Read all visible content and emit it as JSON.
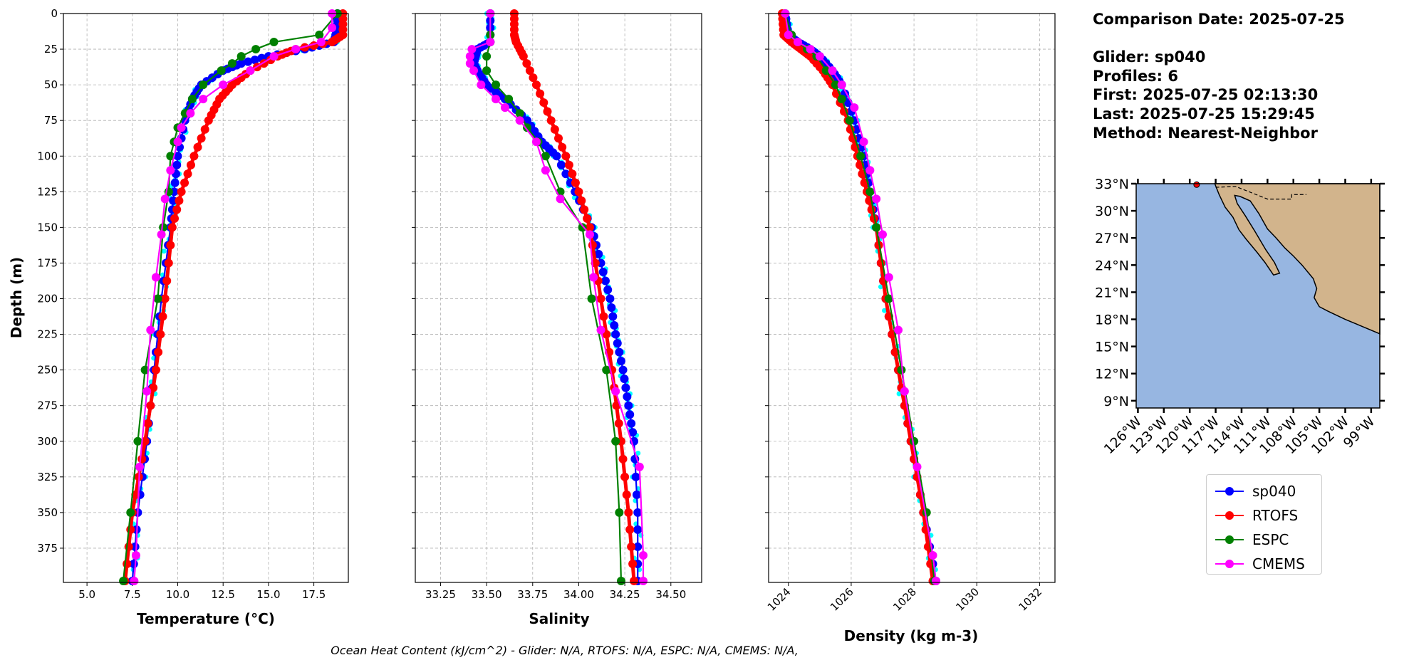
{
  "info": {
    "lines": [
      "Comparison Date: 2025-07-25",
      "",
      "Glider: sp040",
      "Profiles: 6",
      "First: 2025-07-25 02:13:30",
      "Last: 2025-07-25 15:29:45",
      "Method: Nearest-Neighbor"
    ]
  },
  "caption": "Ocean Heat Content (kJ/cm^2) - Glider: N/A,  RTOFS: N/A,  ESPC: N/A,  CMEMS: N/A,",
  "colors": {
    "sp040": "#0000ff",
    "RTOFS": "#ff0000",
    "ESPC": "#008000",
    "CMEMS": "#ff00ff",
    "profiles": "#00ffff",
    "water": "#97b6e1",
    "land": "#d2b48c"
  },
  "legend": [
    "sp040",
    "RTOFS",
    "ESPC",
    "CMEMS"
  ],
  "chart_data": [
    {
      "type": "line",
      "xlabel": "Temperature (°C)",
      "ylabel": "Depth (m)",
      "xlim": [
        3.7,
        19.4
      ],
      "ylim": [
        399,
        0
      ],
      "xticks": [
        "5.0",
        "7.5",
        "10.0",
        "12.5",
        "15.0",
        "17.5"
      ],
      "yticks": [
        "0",
        "25",
        "50",
        "75",
        "100",
        "125",
        "150",
        "175",
        "200",
        "225",
        "250",
        "275",
        "300",
        "325",
        "350",
        "375"
      ],
      "grid": true,
      "series": [
        {
          "name": "sp040",
          "depth": [
            0,
            10,
            20,
            25,
            30,
            35,
            40,
            50,
            60,
            75,
            100,
            125,
            150,
            200,
            250,
            300,
            350,
            398
          ],
          "values": [
            18.8,
            18.8,
            18.6,
            17,
            15,
            13.5,
            12.5,
            11.3,
            10.8,
            10.4,
            10.0,
            9.8,
            9.6,
            9.1,
            8.7,
            8.3,
            7.8,
            7.5
          ]
        },
        {
          "name": "RTOFS",
          "depth": [
            0,
            15,
            20,
            25,
            30,
            40,
            50,
            60,
            75,
            100,
            125,
            150,
            200,
            250,
            300,
            350,
            398
          ],
          "values": [
            19.1,
            19.1,
            18.5,
            16.5,
            15.5,
            14,
            13,
            12.3,
            11.7,
            10.9,
            10.2,
            9.7,
            9.3,
            8.8,
            8.2,
            7.5,
            7.1
          ]
        },
        {
          "name": "ESPC",
          "depth": [
            0,
            15,
            20,
            25,
            30,
            35,
            40,
            50,
            60,
            70,
            80,
            90,
            100,
            125,
            150,
            200,
            250,
            300,
            350,
            398
          ],
          "values": [
            18.8,
            17.8,
            15.3,
            14.3,
            13.5,
            13,
            12.4,
            11.4,
            10.8,
            10.4,
            10,
            9.8,
            9.6,
            9.5,
            9.2,
            8.9,
            8.2,
            7.8,
            7.4,
            7.0
          ]
        },
        {
          "name": "CMEMS",
          "depth": [
            0,
            10,
            20,
            25,
            30,
            40,
            50,
            60,
            70,
            80,
            90,
            110,
            130,
            155,
            185,
            222,
            265,
            318,
            380,
            398
          ],
          "values": [
            18.5,
            18.5,
            17.9,
            16.5,
            15.3,
            14,
            12.5,
            11.4,
            10.7,
            10.2,
            10,
            9.6,
            9.3,
            9.1,
            8.8,
            8.5,
            8.3,
            7.9,
            7.7,
            7.6
          ]
        }
      ]
    },
    {
      "type": "line",
      "xlabel": "Salinity",
      "xlim": [
        33.113,
        34.667
      ],
      "ylim": [
        399,
        0
      ],
      "xticks": [
        "33.25",
        "33.50",
        "33.75",
        "34.00",
        "34.25",
        "34.50"
      ],
      "grid": true,
      "series": [
        {
          "name": "sp040",
          "depth": [
            0,
            20,
            25,
            30,
            35,
            40,
            50,
            60,
            75,
            90,
            100,
            125,
            150,
            175,
            200,
            225,
            250,
            275,
            300,
            350,
            398
          ],
          "values": [
            33.52,
            33.52,
            33.45,
            33.44,
            33.43,
            33.45,
            33.5,
            33.6,
            33.72,
            33.8,
            33.88,
            33.98,
            34.07,
            34.12,
            34.17,
            34.2,
            34.24,
            34.27,
            34.3,
            34.32,
            34.32
          ]
        },
        {
          "name": "RTOFS",
          "depth": [
            0,
            15,
            20,
            30,
            50,
            75,
            100,
            125,
            150,
            200,
            250,
            300,
            350,
            398
          ],
          "values": [
            33.65,
            33.65,
            33.66,
            33.7,
            33.77,
            33.85,
            33.93,
            34.0,
            34.06,
            34.12,
            34.18,
            34.23,
            34.27,
            34.3
          ]
        },
        {
          "name": "ESPC",
          "depth": [
            0,
            15,
            20,
            30,
            40,
            50,
            60,
            70,
            80,
            90,
            100,
            125,
            150,
            200,
            250,
            300,
            350,
            398
          ],
          "values": [
            33.52,
            33.52,
            33.52,
            33.5,
            33.5,
            33.55,
            33.62,
            33.68,
            33.72,
            33.78,
            33.82,
            33.9,
            34.02,
            34.07,
            34.15,
            34.2,
            34.22,
            34.23
          ]
        },
        {
          "name": "CMEMS",
          "depth": [
            0,
            20,
            25,
            30,
            35,
            40,
            50,
            60,
            66,
            75,
            90,
            110,
            130,
            155,
            185,
            222,
            265,
            318,
            380,
            398
          ],
          "values": [
            33.52,
            33.52,
            33.42,
            33.41,
            33.41,
            33.43,
            33.47,
            33.55,
            33.6,
            33.68,
            33.77,
            33.82,
            33.9,
            34.06,
            34.08,
            34.12,
            34.2,
            34.33,
            34.35,
            34.35
          ]
        }
      ]
    },
    {
      "type": "line",
      "xlabel": "Density (kg m-3)",
      "xlim": [
        1023.37,
        1032.49
      ],
      "ylim": [
        399,
        0
      ],
      "xticks": [
        "1024",
        "1026",
        "1028",
        "1030",
        "1032"
      ],
      "grid": true,
      "series": [
        {
          "name": "sp040",
          "depth": [
            0,
            15,
            20,
            25,
            30,
            40,
            50,
            75,
            100,
            125,
            150,
            200,
            250,
            300,
            350,
            398
          ],
          "values": [
            1023.9,
            1024.0,
            1024.3,
            1024.7,
            1025.0,
            1025.4,
            1025.7,
            1026.1,
            1026.4,
            1026.6,
            1026.8,
            1027.1,
            1027.5,
            1027.9,
            1028.3,
            1028.7
          ]
        },
        {
          "name": "RTOFS",
          "depth": [
            0,
            15,
            20,
            25,
            30,
            40,
            50,
            75,
            100,
            125,
            150,
            200,
            250,
            300,
            350,
            398
          ],
          "values": [
            1023.8,
            1023.85,
            1024.1,
            1024.4,
            1024.7,
            1025.1,
            1025.4,
            1025.9,
            1026.2,
            1026.5,
            1026.8,
            1027.1,
            1027.5,
            1027.9,
            1028.3,
            1028.6
          ]
        },
        {
          "name": "ESPC",
          "depth": [
            0,
            15,
            20,
            25,
            30,
            40,
            50,
            60,
            75,
            100,
            125,
            150,
            200,
            250,
            300,
            350,
            398
          ],
          "values": [
            1023.9,
            1024.1,
            1024.3,
            1024.6,
            1024.9,
            1025.2,
            1025.5,
            1025.7,
            1025.95,
            1026.3,
            1026.6,
            1026.8,
            1027.2,
            1027.6,
            1028.0,
            1028.4,
            1028.65
          ]
        },
        {
          "name": "CMEMS",
          "depth": [
            0,
            15,
            20,
            25,
            30,
            40,
            50,
            66,
            90,
            110,
            130,
            155,
            185,
            222,
            265,
            318,
            380,
            398
          ],
          "values": [
            1023.9,
            1024.0,
            1024.3,
            1024.7,
            1025.0,
            1025.4,
            1025.7,
            1026.1,
            1026.4,
            1026.6,
            1026.8,
            1027.0,
            1027.2,
            1027.5,
            1027.7,
            1028.1,
            1028.6,
            1028.7
          ]
        }
      ]
    },
    {
      "type": "map",
      "lon_range": [
        -126.2,
        -98
      ],
      "lat_range": [
        8.2,
        33
      ],
      "lon_ticks": [
        "126°W",
        "123°W",
        "120°W",
        "117°W",
        "114°W",
        "111°W",
        "108°W",
        "105°W",
        "102°W",
        "99°W"
      ],
      "lat_ticks": [
        "9°N",
        "12°N",
        "15°N",
        "18°N",
        "21°N",
        "24°N",
        "27°N",
        "30°N",
        "33°N"
      ],
      "glider_position": {
        "lon": -119.2,
        "lat": 32.9
      }
    }
  ]
}
